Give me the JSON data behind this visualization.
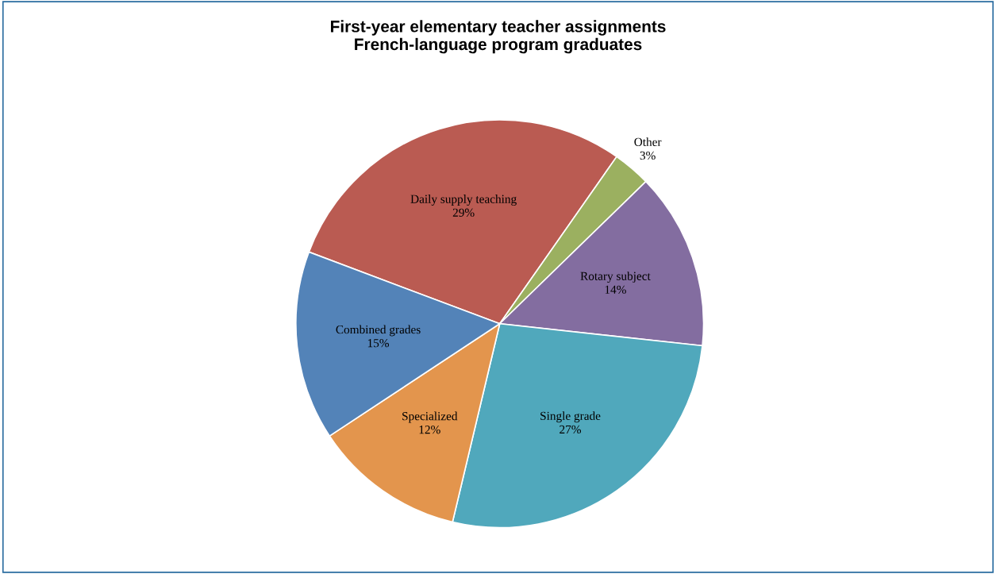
{
  "chart_data": {
    "type": "pie",
    "title": "First-year elementary teacher assignments\nFrench-language program graduates",
    "categories": [
      "Daily supply teaching",
      "Other",
      "Rotary subject",
      "Single grade",
      "Specialized",
      "Combined grades"
    ],
    "values": [
      29,
      3,
      14,
      27,
      12,
      15
    ],
    "colors": [
      "#ba5b52",
      "#9bb060",
      "#836da0",
      "#50a8bc",
      "#e3954d",
      "#5383b8"
    ],
    "value_labels": [
      "29%",
      "3%",
      "14%",
      "27%",
      "12%",
      "15%"
    ],
    "legend": false
  }
}
